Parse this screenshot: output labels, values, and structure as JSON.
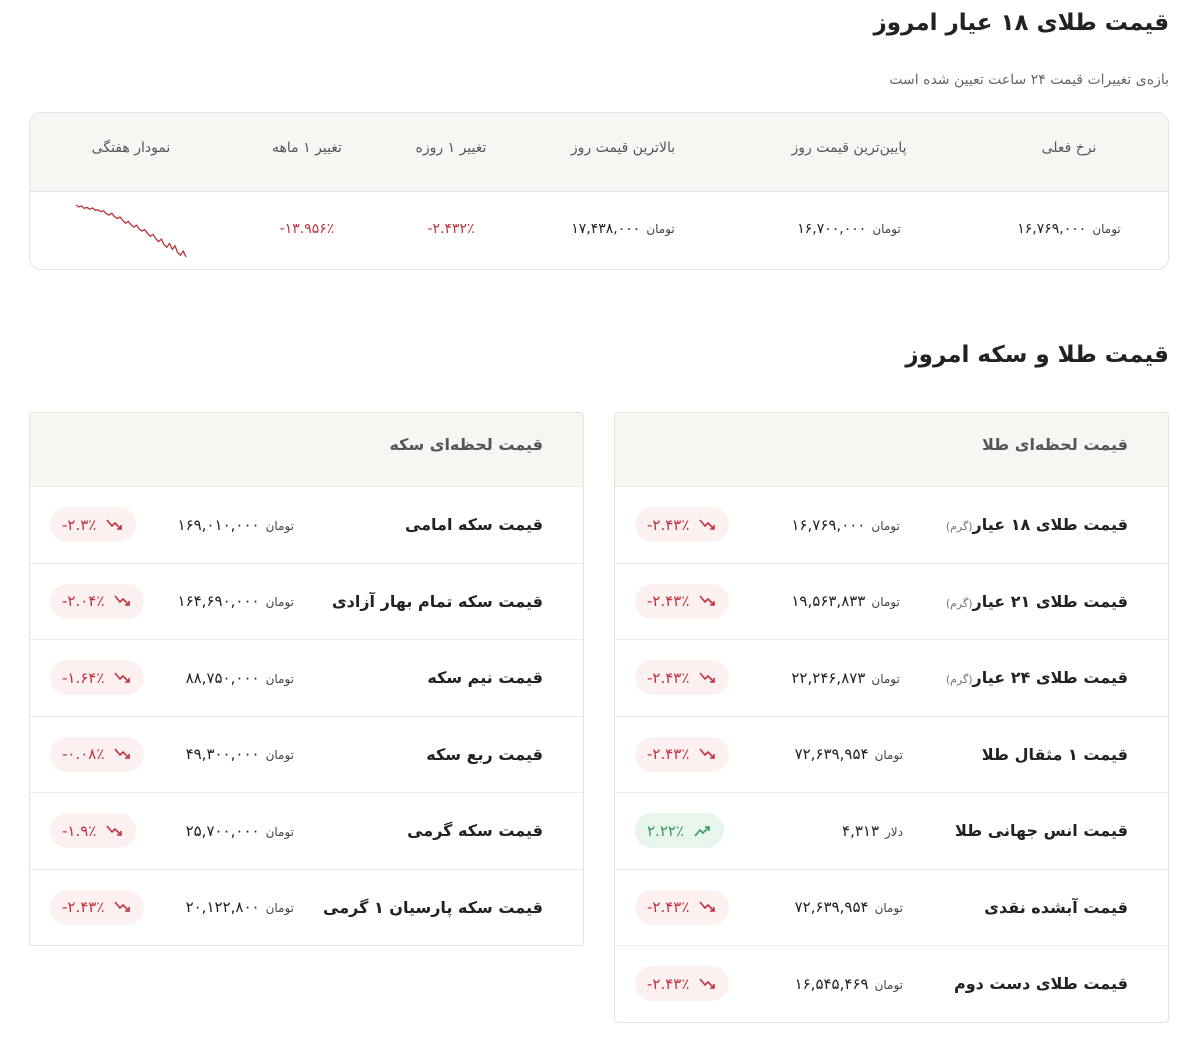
{
  "header": {
    "title": "قیمت طلای ۱۸ عیار امروز",
    "subtitle": "بازه‌ی تغییرات قیمت ۲۴ ساعت تعیین شده است"
  },
  "table": {
    "columns": [
      "نرخ فعلی",
      "پایین‌ترین قیمت روز",
      "بالاترین قیمت روز",
      "تغییر ۱ روزه",
      "تغییر ۱ ماهه",
      "نمودار هفتگی"
    ],
    "prices": [
      {
        "value": "۱۶,۷۶۹,۰۰۰",
        "unit": "تومان"
      },
      {
        "value": "۱۶,۷۰۰,۰۰۰",
        "unit": "تومان"
      },
      {
        "value": "۱۷,۴۳۸,۰۰۰",
        "unit": "تومان"
      }
    ],
    "changes": [
      "-۲.۴۳۲٪",
      "-۱۳.۹۵۶٪"
    ],
    "sparkline": {
      "values": [
        100,
        99.6,
        99.8,
        99.3,
        99.5,
        99.1,
        99.4,
        98.9,
        99.0,
        98.6,
        98.8,
        98.2,
        97.9,
        98.3,
        97.6,
        97.2,
        97.5,
        96.8,
        96.2,
        96.6,
        95.9,
        95.4,
        95.8,
        95.0,
        94.6,
        94.9,
        94.1,
        93.5,
        93.9,
        93.0,
        92.4,
        92.9,
        91.8,
        91.2,
        92.0,
        90.8,
        91.5,
        90.1,
        89.6,
        90.4,
        89.2
      ]
    }
  },
  "section_title": "قیمت طلا و سکه امروز",
  "gold_card": {
    "title": "قیمت لحظه‌ای طلا",
    "rows": [
      {
        "name": "قیمت طلای ۱۸ عیار",
        "note": "(گرم)",
        "price": "۱۶,۷۶۹,۰۰۰",
        "unit": "تومان",
        "change": "-۲.۴۳٪",
        "direction": "down"
      },
      {
        "name": "قیمت طلای ۲۱ عیار",
        "note": "(گرم)",
        "price": "۱۹,۵۶۳,۸۳۳",
        "unit": "تومان",
        "change": "-۲.۴۳٪",
        "direction": "down"
      },
      {
        "name": "قیمت طلای ۲۴ عیار",
        "note": "(گرم)",
        "price": "۲۲,۲۴۶,۸۷۳",
        "unit": "تومان",
        "change": "-۲.۴۳٪",
        "direction": "down"
      },
      {
        "name": "قیمت ۱ مثقال طلا",
        "price": "۷۲,۶۳۹,۹۵۴",
        "unit": "تومان",
        "change": "-۲.۴۳٪",
        "direction": "down"
      },
      {
        "name": "قیمت انس جهانی طلا",
        "price": "۴,۳۱۳",
        "unit": "دلار",
        "change": "۲.۲۲٪",
        "direction": "up"
      },
      {
        "name": "قیمت آبشده نقدی",
        "price": "۷۲,۶۳۹,۹۵۴",
        "unit": "تومان",
        "change": "-۲.۴۳٪",
        "direction": "down"
      },
      {
        "name": "قیمت طلای دست دوم",
        "price": "۱۶,۵۴۵,۴۶۹",
        "unit": "تومان",
        "change": "-۲.۴۳٪",
        "direction": "down"
      }
    ]
  },
  "coin_card": {
    "title": "قیمت لحظه‌ای سکه",
    "rows": [
      {
        "name": "قیمت سکه امامی",
        "price": "۱۶۹,۰۱۰,۰۰۰",
        "unit": "تومان",
        "change": "-۲.۳٪",
        "direction": "down"
      },
      {
        "name": "قیمت سکه تمام بهار آزادی",
        "price": "۱۶۴,۶۹۰,۰۰۰",
        "unit": "تومان",
        "change": "-۲.۰۴٪",
        "direction": "down"
      },
      {
        "name": "قیمت نیم سکه",
        "price": "۸۸,۷۵۰,۰۰۰",
        "unit": "تومان",
        "change": "-۱.۶۴٪",
        "direction": "down"
      },
      {
        "name": "قیمت ربع سکه",
        "price": "۴۹,۳۰۰,۰۰۰",
        "unit": "تومان",
        "change": "-۰.۰۸٪",
        "direction": "down"
      },
      {
        "name": "قیمت سکه گرمی",
        "price": "۲۵,۷۰۰,۰۰۰",
        "unit": "تومان",
        "change": "-۱.۹٪",
        "direction": "down"
      },
      {
        "name": "قیمت سکه پارسیان ۱ گرمی",
        "price": "۲۰,۱۲۲,۸۰۰",
        "unit": "تومان",
        "change": "-۲.۴۳٪",
        "direction": "down"
      }
    ]
  }
}
